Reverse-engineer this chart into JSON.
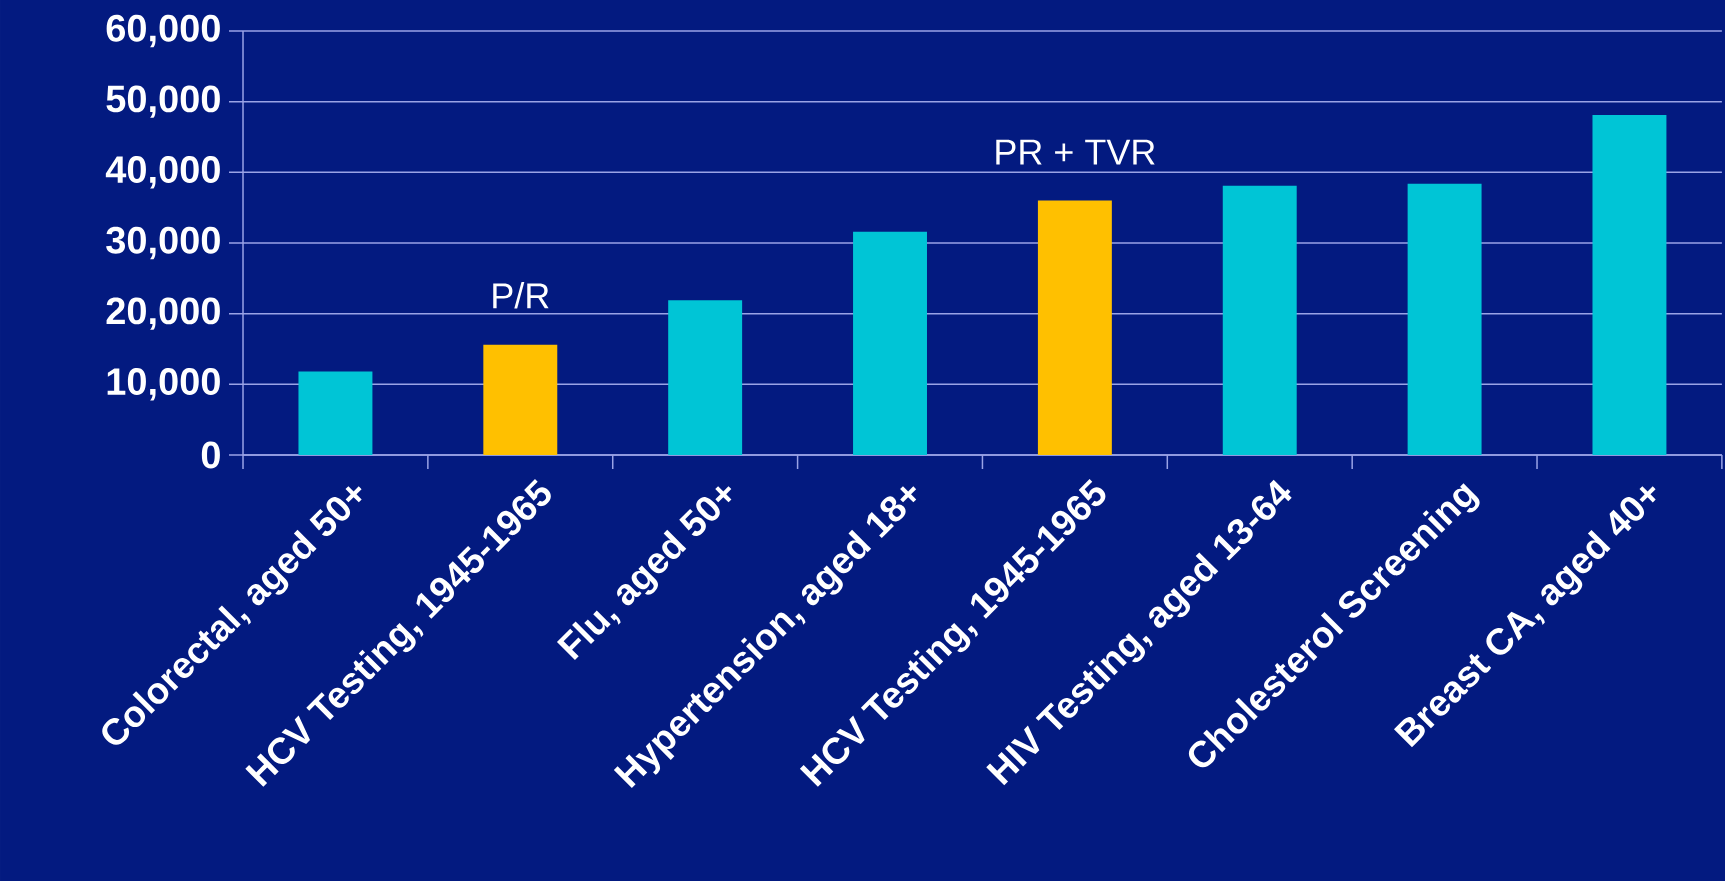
{
  "chart_data": {
    "type": "bar",
    "categories": [
      "Colorectal, aged 50+",
      "HCV Testing, 1945-1965",
      "Flu, aged 50+",
      "Hypertension, aged 18+",
      "HCV Testing, 1945-1965",
      "HIV Testing, aged 13-64",
      "Cholesterol Screening",
      "Breast CA, aged 40+"
    ],
    "values": [
      11800,
      15600,
      21900,
      31600,
      36000,
      38100,
      38400,
      48100
    ],
    "colors": [
      "#00c5d6",
      "#ffc000",
      "#00c5d6",
      "#00c5d6",
      "#ffc000",
      "#00c5d6",
      "#00c5d6",
      "#00c5d6"
    ],
    "ylim": [
      0,
      60000
    ],
    "yticks": [
      {
        "value": 0,
        "label": "0"
      },
      {
        "value": 10000,
        "label": "10,000"
      },
      {
        "value": 20000,
        "label": "20,000"
      },
      {
        "value": 30000,
        "label": "30,000"
      },
      {
        "value": 40000,
        "label": "40,000"
      },
      {
        "value": 50000,
        "label": "50,000"
      },
      {
        "value": 60000,
        "label": "60,000"
      }
    ],
    "grid": "y",
    "annotations": [
      "P/R",
      "PR + TVR"
    ]
  }
}
